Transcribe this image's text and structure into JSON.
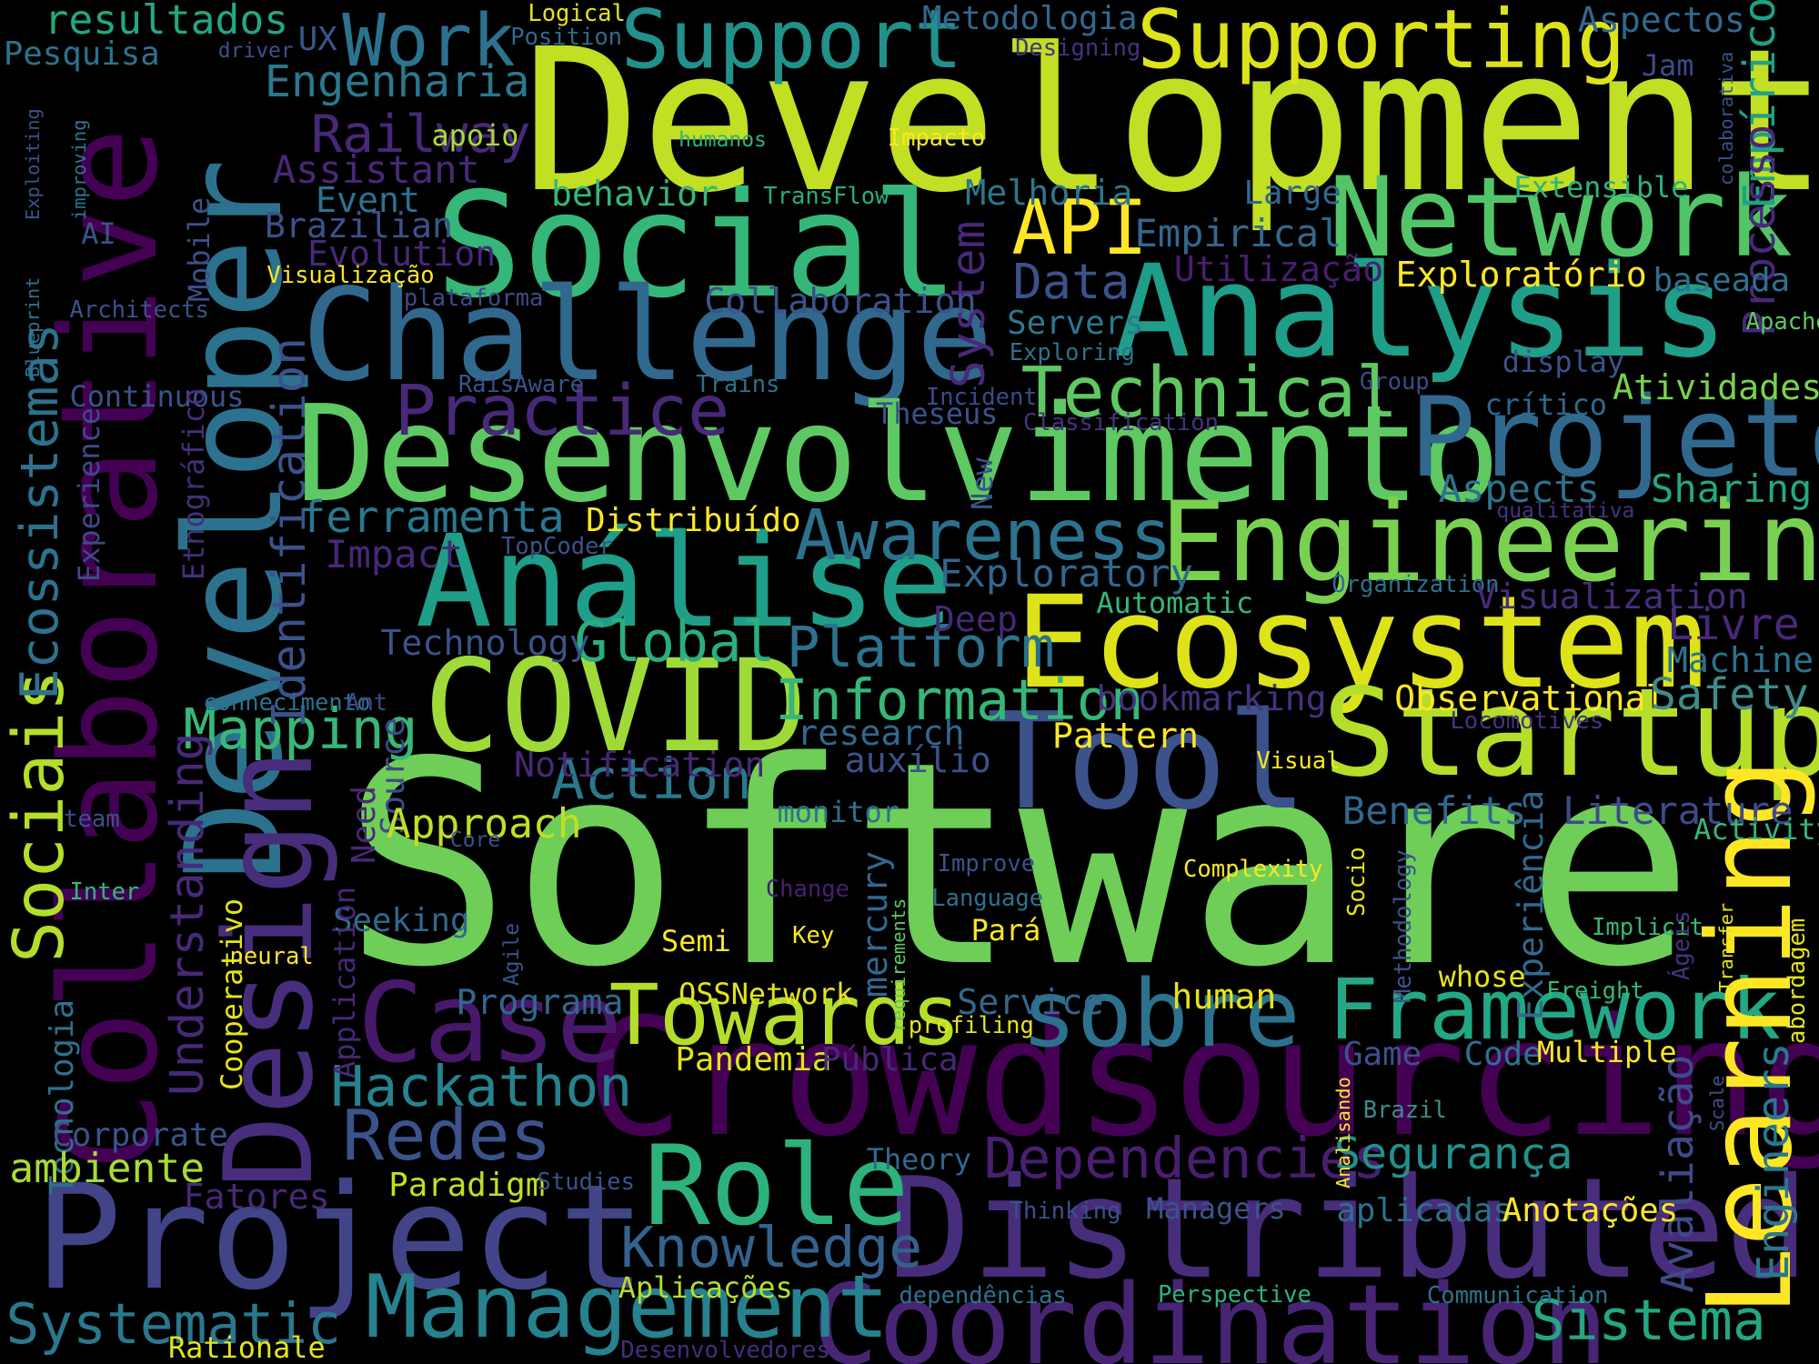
{
  "words": [
    {
      "text": "Software",
      "color": "#6ece58"
    },
    {
      "text": "Development",
      "color": "#c2df23"
    },
    {
      "text": "Social",
      "color": "#35b779"
    },
    {
      "text": "Network",
      "color": "#52c569"
    },
    {
      "text": "Analysis",
      "color": "#1f9e89"
    },
    {
      "text": "Challenge",
      "color": "#31688e"
    },
    {
      "text": "Desenvolvimento",
      "color": "#5ec962"
    },
    {
      "text": "Projeto",
      "color": "#31688e"
    },
    {
      "text": "Análise",
      "color": "#1f9e89"
    },
    {
      "text": "Engineering",
      "color": "#7ad151"
    },
    {
      "text": "Ecosystem",
      "color": "#dde318"
    },
    {
      "text": "COVID",
      "color": "#a0da39"
    },
    {
      "text": "Tool",
      "color": "#3b528b"
    },
    {
      "text": "Startup",
      "color": "#b5de2b"
    },
    {
      "text": "Crowdsourcing",
      "color": "#440154"
    },
    {
      "text": "Distributed",
      "color": "#472d7b"
    },
    {
      "text": "Project",
      "color": "#414487"
    },
    {
      "text": "Coordination",
      "color": "#482475"
    },
    {
      "text": "Management",
      "color": "#26828e"
    },
    {
      "text": "sobre",
      "color": "#2c728e"
    },
    {
      "text": "Case",
      "color": "#48186a"
    },
    {
      "text": "Towards",
      "color": "#b5de2b"
    },
    {
      "text": "Framework",
      "color": "#22a884"
    },
    {
      "text": "Role",
      "color": "#2db27d"
    },
    {
      "text": "Collaborative",
      "color": "#440154"
    },
    {
      "text": "Developer",
      "color": "#2c728e"
    },
    {
      "text": "Design",
      "color": "#472d7b"
    },
    {
      "text": "Learning",
      "color": "#fde725"
    },
    {
      "text": "Supporting",
      "color": "#dde318"
    },
    {
      "text": "Support",
      "color": "#21918c"
    },
    {
      "text": "Work",
      "color": "#2c728e"
    },
    {
      "text": "API",
      "color": "#fde725"
    },
    {
      "text": "Technical",
      "color": "#5ec962"
    },
    {
      "text": "Practice",
      "color": "#482878"
    },
    {
      "text": "Awareness",
      "color": "#2c728e"
    },
    {
      "text": "Sociais",
      "color": "#b5de2b"
    },
    {
      "text": "Sistema",
      "color": "#22a884"
    },
    {
      "text": "Systematic",
      "color": "#2a788e"
    },
    {
      "text": "Knowledge",
      "color": "#33638d"
    },
    {
      "text": "Redes",
      "color": "#3b528b"
    },
    {
      "text": "Hackathon",
      "color": "#26828e"
    },
    {
      "text": "Dependencies",
      "color": "#481f70"
    },
    {
      "text": "Information",
      "color": "#35b779"
    },
    {
      "text": "Platform",
      "color": "#2c728e"
    },
    {
      "text": "Global",
      "color": "#29af7f"
    },
    {
      "text": "Action",
      "color": "#2a788e"
    },
    {
      "text": "Mapping",
      "color": "#37b878"
    },
    {
      "text": "Ecossistemas",
      "color": "#2c728e"
    },
    {
      "text": "Identification",
      "color": "#3b528b"
    },
    {
      "text": "Understanding",
      "color": "#482878"
    },
    {
      "text": "Empírico",
      "color": "#1fa187"
    },
    {
      "text": "Processo",
      "color": "#482878"
    },
    {
      "text": "Engineers",
      "color": "#2a788e"
    },
    {
      "text": "Avaliação",
      "color": "#3e4a89"
    },
    {
      "text": "Experiência",
      "color": "#31688e"
    },
    {
      "text": "Segurança",
      "color": "#21918c"
    },
    {
      "text": "System",
      "color": "#482878"
    },
    {
      "text": "Data",
      "color": "#3b528b"
    },
    {
      "text": "ferramenta",
      "color": "#2a788e"
    },
    {
      "text": "Railway",
      "color": "#482878"
    },
    {
      "text": "Engenharia",
      "color": "#2a788e"
    },
    {
      "text": "resultados",
      "color": "#22a884"
    },
    {
      "text": "Pesquisa",
      "color": "#2c728e"
    },
    {
      "text": "Metodologia",
      "color": "#31688e"
    },
    {
      "text": "Aspectos",
      "color": "#31688e"
    },
    {
      "text": "Logical",
      "color": "#e5e419"
    },
    {
      "text": "Position",
      "color": "#31688e"
    },
    {
      "text": "driver",
      "color": "#3b528b"
    },
    {
      "text": "UX",
      "color": "#39568c"
    },
    {
      "text": "Designing",
      "color": "#46327e"
    },
    {
      "text": "Jam",
      "color": "#3e4a89"
    },
    {
      "text": "colaborativa",
      "color": "#3b528b"
    },
    {
      "text": "Blueprint",
      "color": "#2c728e"
    },
    {
      "text": "Exploiting",
      "color": "#3b528b"
    },
    {
      "text": "improving",
      "color": "#2a788e"
    },
    {
      "text": "apoio",
      "color": "#a8db34"
    },
    {
      "text": "humanos",
      "color": "#2db27d"
    },
    {
      "text": "Impacto",
      "color": "#fde725"
    },
    {
      "text": "Assistant",
      "color": "#482878"
    },
    {
      "text": "Event",
      "color": "#2c728e"
    },
    {
      "text": "Mobile",
      "color": "#3b528b"
    },
    {
      "text": "behavior",
      "color": "#35b779"
    },
    {
      "text": "TransFlow",
      "color": "#27ad81"
    },
    {
      "text": "Melhoria",
      "color": "#2a788e"
    },
    {
      "text": "Large",
      "color": "#31688e"
    },
    {
      "text": "Extensible",
      "color": "#2db27d"
    },
    {
      "text": "Brazilian",
      "color": "#3b528b"
    },
    {
      "text": "AI",
      "color": "#3b528b"
    },
    {
      "text": "Evolution",
      "color": "#482878"
    },
    {
      "text": "Empirical",
      "color": "#31688e"
    },
    {
      "text": "Visualização",
      "color": "#fde725"
    },
    {
      "text": "Utilização",
      "color": "#481f70"
    },
    {
      "text": "Exploratório",
      "color": "#fde725"
    },
    {
      "text": "baseada",
      "color": "#2c728e"
    },
    {
      "text": "Architects",
      "color": "#3b528b"
    },
    {
      "text": "plataforma",
      "color": "#3e4a89"
    },
    {
      "text": "Collaboration",
      "color": "#3b528b"
    },
    {
      "text": "Servers",
      "color": "#2a788e"
    },
    {
      "text": "Apache",
      "color": "#5ec962"
    },
    {
      "text": "Exploring",
      "color": "#2c728e"
    },
    {
      "text": "display",
      "color": "#3b528b"
    },
    {
      "text": "Group",
      "color": "#3e4a89"
    },
    {
      "text": "Atividades",
      "color": "#7ad151"
    },
    {
      "text": "Continuous",
      "color": "#3b528b"
    },
    {
      "text": "RaisAware",
      "color": "#3b528b"
    },
    {
      "text": "Trains",
      "color": "#2c728e"
    },
    {
      "text": "Incident",
      "color": "#3e4a89"
    },
    {
      "text": "Theseus",
      "color": "#3b528b"
    },
    {
      "text": "Classification",
      "color": "#46327e"
    },
    {
      "text": "crítico",
      "color": "#31688e"
    },
    {
      "text": "Etnográfico",
      "color": "#472d7b"
    },
    {
      "text": "Experience",
      "color": "#3e4a89"
    },
    {
      "text": "New",
      "color": "#3b528b"
    },
    {
      "text": "Aspects",
      "color": "#2c728e"
    },
    {
      "text": "Sharing",
      "color": "#22a884"
    },
    {
      "text": "qualitativa",
      "color": "#46327e"
    },
    {
      "text": "Distribuído",
      "color": "#fde725"
    },
    {
      "text": "TopCoder",
      "color": "#3b528b"
    },
    {
      "text": "Impact",
      "color": "#482878"
    },
    {
      "text": "Exploratory",
      "color": "#31688e"
    },
    {
      "text": "Organization",
      "color": "#2c728e"
    },
    {
      "text": "Visualization",
      "color": "#472d7b"
    },
    {
      "text": "Automatic",
      "color": "#35b779"
    },
    {
      "text": "Deep",
      "color": "#482878"
    },
    {
      "text": "Livre",
      "color": "#482878"
    },
    {
      "text": "Machine",
      "color": "#2c728e"
    },
    {
      "text": "Technology",
      "color": "#3b528b"
    },
    {
      "text": "Need",
      "color": "#482878"
    },
    {
      "text": "Source",
      "color": "#3e4a89"
    },
    {
      "text": "Observational",
      "color": "#fde725"
    },
    {
      "text": "Safety",
      "color": "#3e8c8c"
    },
    {
      "text": "bookmarking",
      "color": "#46327e"
    },
    {
      "text": "Locomotives",
      "color": "#46327e"
    },
    {
      "text": "conhecimento",
      "color": "#2c728e"
    },
    {
      "text": "Ant",
      "color": "#3e4a89"
    },
    {
      "text": "research",
      "color": "#31688e"
    },
    {
      "text": "Pattern",
      "color": "#fde725"
    },
    {
      "text": "auxílio",
      "color": "#3b528b"
    },
    {
      "text": "Notification",
      "color": "#482878"
    },
    {
      "text": "Visual",
      "color": "#fde725"
    },
    {
      "text": "monitor",
      "color": "#2c728e"
    },
    {
      "text": "Benefits",
      "color": "#31688e"
    },
    {
      "text": "Literature",
      "color": "#3e4a89"
    },
    {
      "text": "Activity",
      "color": "#35b779"
    },
    {
      "text": "Approach",
      "color": "#c2df23"
    },
    {
      "text": "team",
      "color": "#3b528b"
    },
    {
      "text": "Core",
      "color": "#3b528b"
    },
    {
      "text": "Inter",
      "color": "#35b779"
    },
    {
      "text": "Improve",
      "color": "#3b528b"
    },
    {
      "text": "Change",
      "color": "#481f70"
    },
    {
      "text": "Language",
      "color": "#2c728e"
    },
    {
      "text": "Complexity",
      "color": "#fde725"
    },
    {
      "text": "Socio",
      "color": "#e5e419"
    },
    {
      "text": "Methodology",
      "color": "#3b528b"
    },
    {
      "text": "requirements",
      "color": "#5ec962"
    },
    {
      "text": "Seeking",
      "color": "#31688e"
    },
    {
      "text": "Pará",
      "color": "#fde725"
    },
    {
      "text": "Key",
      "color": "#fde725"
    },
    {
      "text": "Implicit",
      "color": "#35b779"
    },
    {
      "text": "Semi",
      "color": "#fde725"
    },
    {
      "text": "Ágeis",
      "color": "#46327e"
    },
    {
      "text": "Transfer",
      "color": "#e5e419"
    },
    {
      "text": "abordagem",
      "color": "#e5e419"
    },
    {
      "text": "Cooperativo",
      "color": "#e5e419"
    },
    {
      "text": "neural",
      "color": "#fde725"
    },
    {
      "text": "Agile",
      "color": "#3b528b"
    },
    {
      "text": "Application",
      "color": "#482878"
    },
    {
      "text": "mercury",
      "color": "#31688e"
    },
    {
      "text": "whose",
      "color": "#e5e419"
    },
    {
      "text": "Freight",
      "color": "#35b779"
    },
    {
      "text": "Tecnologia",
      "color": "#2c728e"
    },
    {
      "text": "Programa",
      "color": "#31688e"
    },
    {
      "text": "OSSNetwork",
      "color": "#e5e419"
    },
    {
      "text": "human",
      "color": "#e5e419"
    },
    {
      "text": "Service",
      "color": "#31688e"
    },
    {
      "text": "profiling",
      "color": "#e5e419"
    },
    {
      "text": "Scale",
      "color": "#3b528b"
    },
    {
      "text": "Analisando",
      "color": "#fde725"
    },
    {
      "text": "Game",
      "color": "#3b528b"
    },
    {
      "text": "Code",
      "color": "#2c728e"
    },
    {
      "text": "Multiple",
      "color": "#fde725"
    },
    {
      "text": "Pandemia",
      "color": "#e5e419"
    },
    {
      "text": "Pública",
      "color": "#482878"
    },
    {
      "text": "Corporate",
      "color": "#3b528b"
    },
    {
      "text": "ambiente",
      "color": "#a8db34"
    },
    {
      "text": "Brazil",
      "color": "#3e8c8c"
    },
    {
      "text": "Theory",
      "color": "#31688e"
    },
    {
      "text": "Fatores",
      "color": "#482878"
    },
    {
      "text": "Paradigm",
      "color": "#c2df23"
    },
    {
      "text": "Studies",
      "color": "#3b528b"
    },
    {
      "text": "Thinking",
      "color": "#3b528b"
    },
    {
      "text": "Managers",
      "color": "#3b528b"
    },
    {
      "text": "aplicadas",
      "color": "#2c728e"
    },
    {
      "text": "Anotações",
      "color": "#fde725"
    },
    {
      "text": "Aplicações",
      "color": "#b5de2b"
    },
    {
      "text": "dependências",
      "color": "#2c728e"
    },
    {
      "text": "Perspective",
      "color": "#2db27d"
    },
    {
      "text": "Communication",
      "color": "#2c728e"
    },
    {
      "text": "Rationale",
      "color": "#e5e419"
    },
    {
      "text": "Desenvolvedores",
      "color": "#472d7b"
    }
  ]
}
